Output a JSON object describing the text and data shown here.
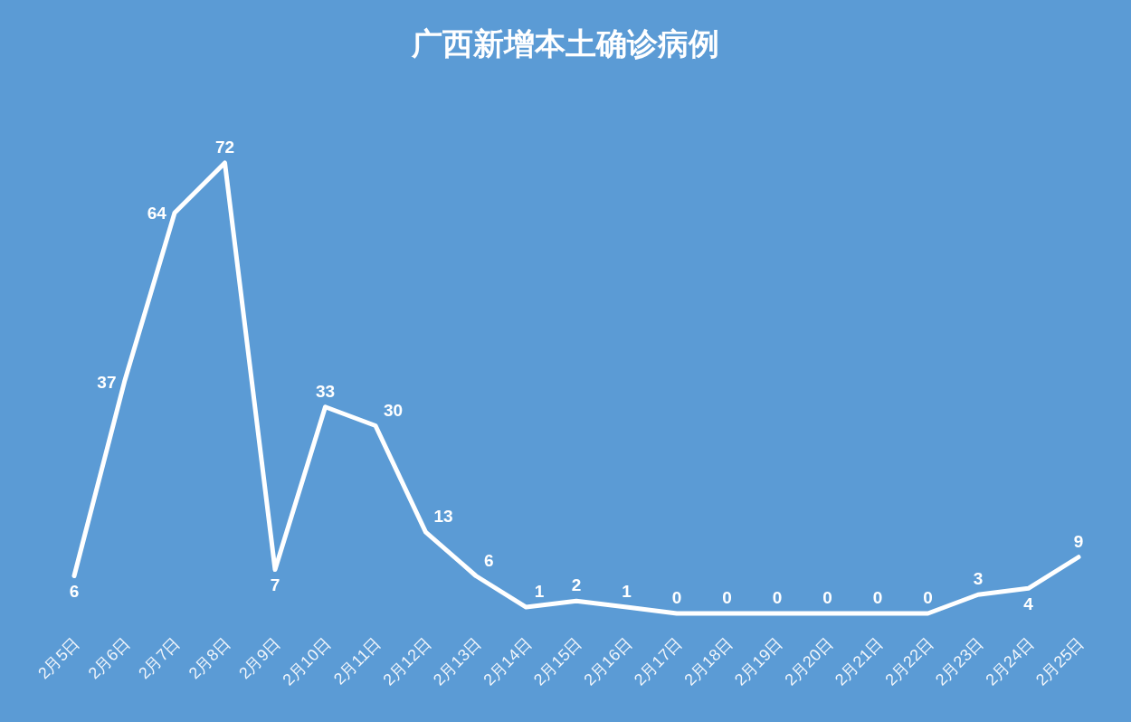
{
  "chart_data": {
    "type": "line",
    "title": "广西新增本土确诊病例",
    "categories": [
      "2月5日",
      "2月6日",
      "2月7日",
      "2月8日",
      "2月9日",
      "2月10日",
      "2月11日",
      "2月12日",
      "2月13日",
      "2月14日",
      "2月15日",
      "2月16日",
      "2月17日",
      "2月18日",
      "2月19日",
      "2月20日",
      "2月21日",
      "2月22日",
      "2月23日",
      "2月24日",
      "2月25日"
    ],
    "series": [
      {
        "color": "#ffffff",
        "values": [
          6,
          37,
          64,
          72,
          7,
          33,
          30,
          13,
          6,
          1,
          2,
          1,
          0,
          0,
          0,
          0,
          0,
          0,
          3,
          4,
          9
        ]
      }
    ],
    "data_labels": true
  }
}
